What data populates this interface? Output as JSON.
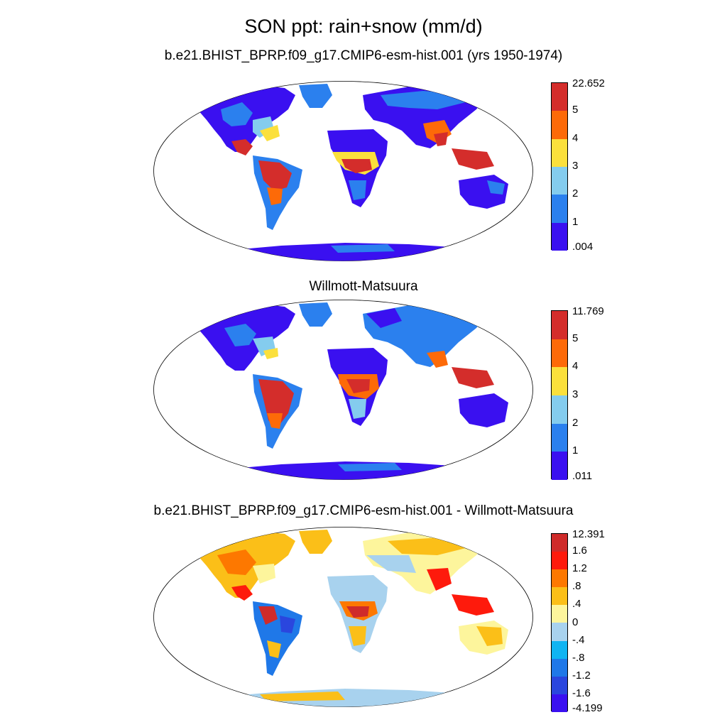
{
  "title": "SON ppt: rain+snow (mm/d)",
  "panels": [
    {
      "name": "model",
      "title": "b.e21.BHIST_BPRP.f09_g17.CMIP6-esm-hist.001 (yrs 1950-1974)",
      "colorbar": {
        "colors": [
          "#3a10f0",
          "#2b80ee",
          "#84ccee",
          "#fbe03c",
          "#fd6a08",
          "#d42d2b"
        ],
        "labels": [
          ".004",
          "1",
          "2",
          "3",
          "4",
          "5",
          "22.652"
        ]
      }
    },
    {
      "name": "observed",
      "title": "Willmott-Matsuura",
      "colorbar": {
        "colors": [
          "#3a10f0",
          "#2b80ee",
          "#84ccee",
          "#fbe03c",
          "#fd6a08",
          "#d42d2b"
        ],
        "labels": [
          ".011",
          "1",
          "2",
          "3",
          "4",
          "5",
          "11.769"
        ]
      }
    },
    {
      "name": "difference",
      "title": "b.e21.BHIST_BPRP.f09_g17.CMIP6-esm-hist.001 - Willmott-Matsuura",
      "colorbar": {
        "colors": [
          "#3a10f0",
          "#2a46de",
          "#1f78e8",
          "#10b4f2",
          "#a8d2ee",
          "#fdf59c",
          "#fbbf18",
          "#fd7800",
          "#fe1a0c",
          "#cf2b2a"
        ],
        "labels": [
          "-4.199",
          "-1.6",
          "-1.2",
          "-.8",
          "-.4",
          "0",
          ".4",
          ".8",
          "1.2",
          "1.6",
          "12.391"
        ]
      }
    }
  ]
}
